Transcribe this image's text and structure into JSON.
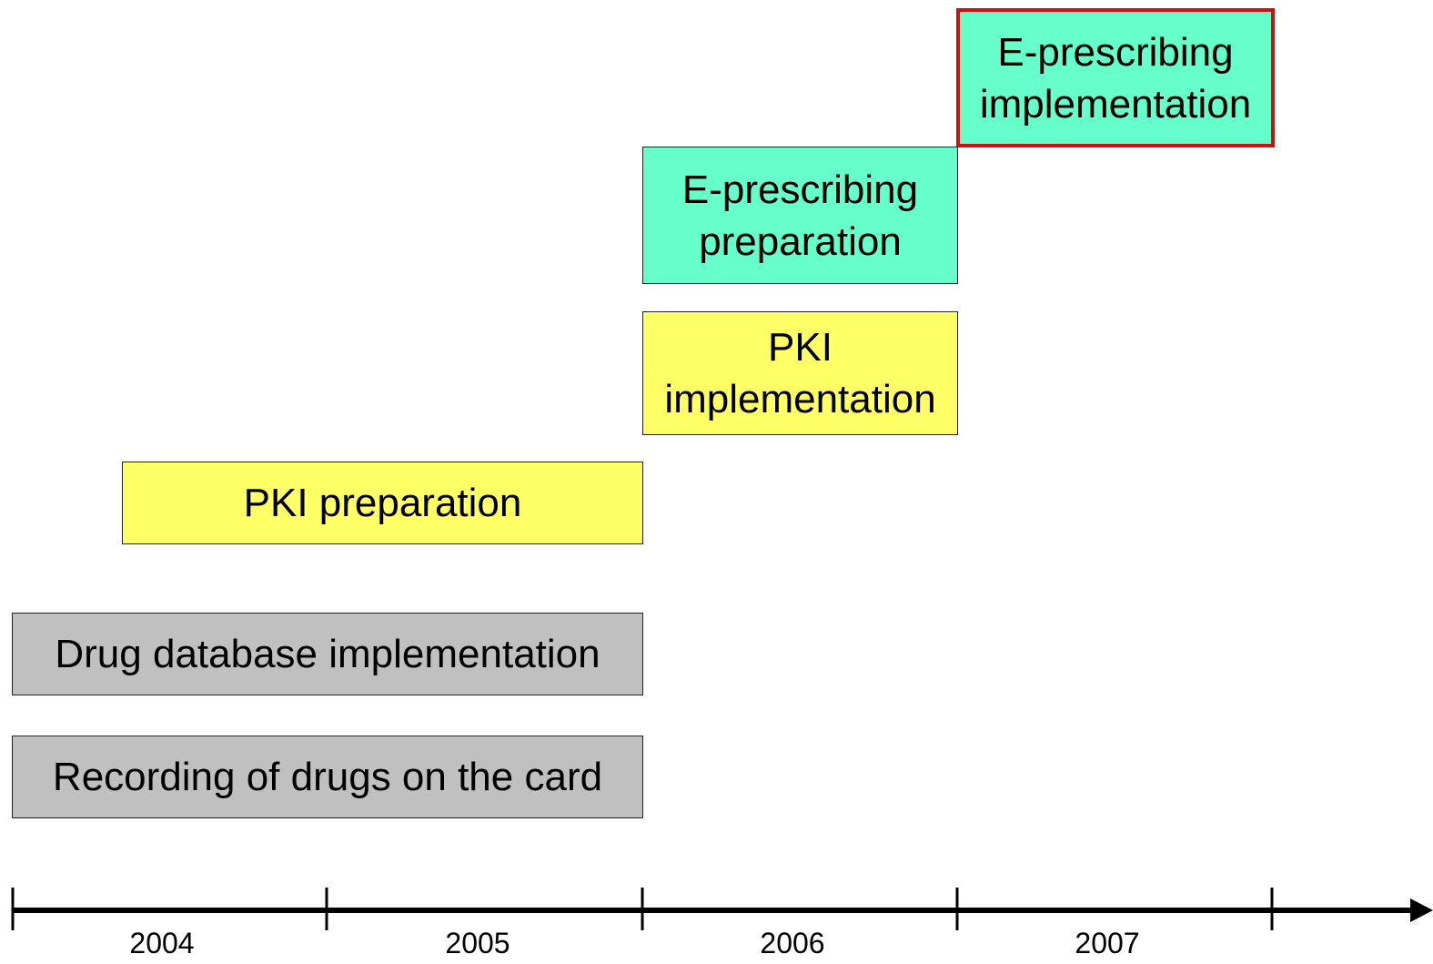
{
  "nodes": [
    {
      "label": "E-prescribing implementation"
    },
    {
      "label": "E-prescribing preparation"
    },
    {
      "label": "PKI implementation"
    },
    {
      "label": "PKI preparation"
    },
    {
      "label": "Drug database implementation"
    },
    {
      "label": "Recording of drugs on the card"
    }
  ],
  "timeline": {
    "years": [
      "2004",
      "2005",
      "2006",
      "2007"
    ]
  }
}
